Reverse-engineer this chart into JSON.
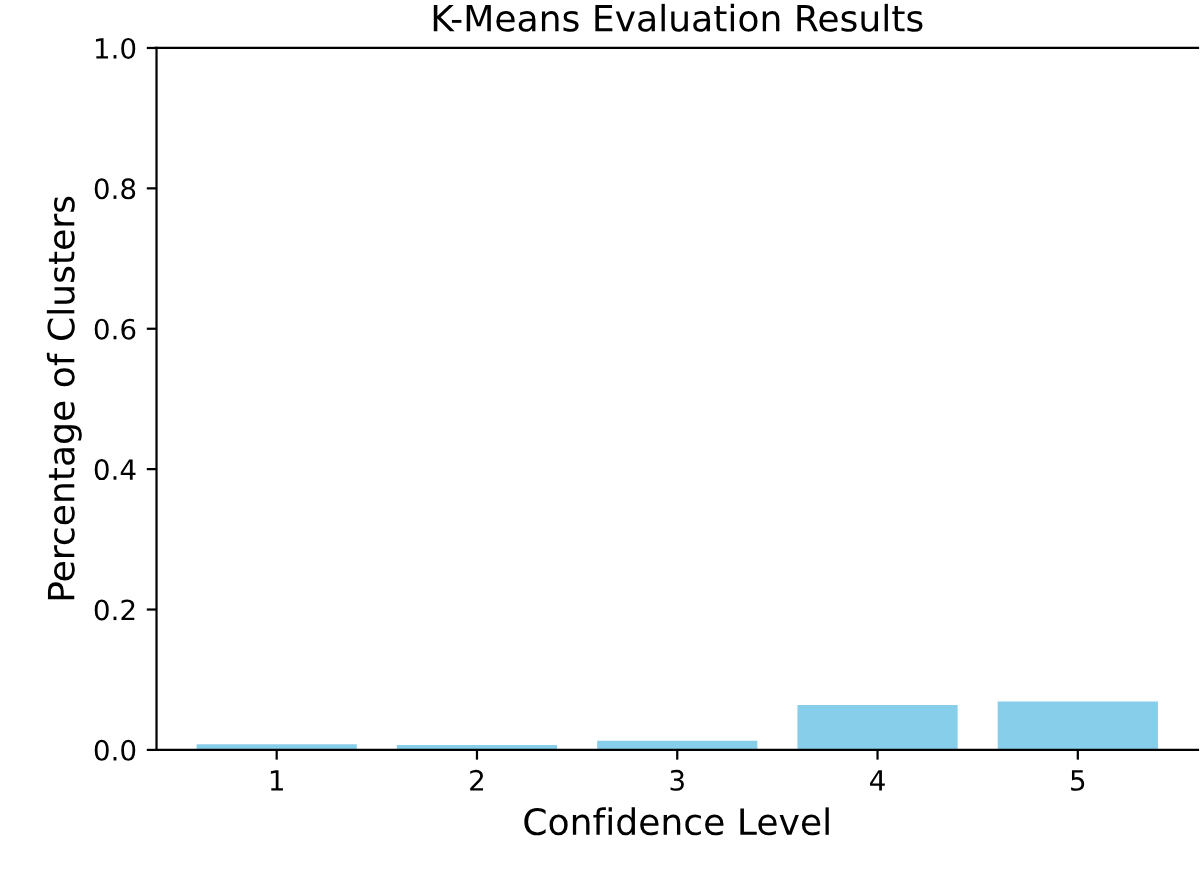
{
  "chart_data": {
    "type": "bar",
    "title": "K-Means Evaluation Results",
    "xlabel": "Confidence Level",
    "ylabel": "Percentage of Clusters",
    "categories": [
      "1",
      "2",
      "3",
      "4",
      "5"
    ],
    "values": [
      0.008,
      0.007,
      0.013,
      0.064,
      0.069
    ],
    "color": "#87ceeb",
    "ylim": [
      0,
      1.0
    ],
    "yticks": [
      {
        "value": 0,
        "label": "0.0"
      },
      0.2,
      0.4,
      0.6,
      0.8,
      {
        "value": 1.0,
        "label": "1.0"
      }
    ],
    "grid": false,
    "legend": false
  }
}
